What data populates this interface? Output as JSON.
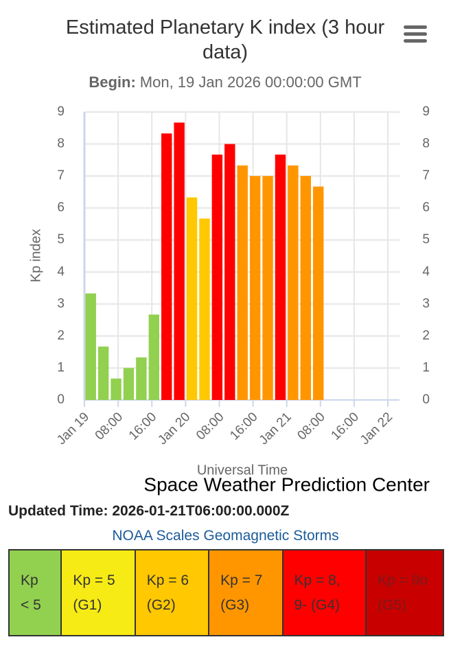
{
  "chart_data": {
    "type": "bar",
    "title": "Estimated Planetary K index (3 hour data)",
    "subtitle_label": "Begin:",
    "subtitle": "Mon, 19 Jan 2026 00:00:00 GMT",
    "x_label": "Universal Time",
    "y_label": "Kp index",
    "credit": "Space Weather Prediction Center",
    "x": [
      "Jan 19 00:00",
      "Jan 19 03:00",
      "Jan 19 06:00",
      "Jan 19 09:00",
      "Jan 19 12:00",
      "Jan 19 15:00",
      "Jan 19 18:00",
      "Jan 19 21:00",
      "Jan 20 00:00",
      "Jan 20 03:00",
      "Jan 20 06:00",
      "Jan 20 09:00",
      "Jan 20 12:00",
      "Jan 20 15:00",
      "Jan 20 18:00",
      "Jan 20 21:00",
      "Jan 21 00:00",
      "Jan 21 03:00",
      "Jan 21 06:00"
    ],
    "values": [
      3.33,
      1.67,
      0.67,
      1,
      1.33,
      2.67,
      8.33,
      8.67,
      6.33,
      5.67,
      7.67,
      8,
      7.33,
      7,
      7,
      7.67,
      7.33,
      7,
      6.67
    ],
    "colors": [
      "#92d050",
      "#92d050",
      "#92d050",
      "#92d050",
      "#92d050",
      "#92d050",
      "#ff0000",
      "#ff0000",
      "#ffc800",
      "#ffc800",
      "#ff0000",
      "#ff0000",
      "#ff9600",
      "#ff9600",
      "#ff9600",
      "#ff0000",
      "#ff9600",
      "#ff9600",
      "#ff9600"
    ],
    "xlim": [
      "Jan 19 00:00",
      "Jan 22 00:00"
    ],
    "xticks": [
      {
        "value": "Jan 19 00:00",
        "label": "Jan 19"
      },
      {
        "value": "Jan 19 08:00",
        "label": "08:00"
      },
      {
        "value": "Jan 19 16:00",
        "label": "16:00"
      },
      {
        "value": "Jan 20 00:00",
        "label": "Jan 20"
      },
      {
        "value": "Jan 20 08:00",
        "label": "08:00"
      },
      {
        "value": "Jan 20 16:00",
        "label": "16:00"
      },
      {
        "value": "Jan 21 00:00",
        "label": "Jan 21"
      },
      {
        "value": "Jan 21 08:00",
        "label": "08:00"
      },
      {
        "value": "Jan 21 16:00",
        "label": "16:00"
      },
      {
        "value": "Jan 22 00:00",
        "label": "Jan 22"
      }
    ],
    "ylim": [
      0,
      9
    ],
    "yticks": [
      0,
      1,
      2,
      3,
      4,
      5,
      6,
      7,
      8,
      9
    ],
    "y2lim": [
      0,
      9
    ],
    "y2ticks": [
      0,
      1,
      2,
      3,
      4,
      5,
      6,
      7,
      8,
      9
    ],
    "grid": true
  },
  "updated_label": "Updated Time:",
  "updated": "2026-01-21T06:00:00.000Z",
  "scales": {
    "title": "NOAA Scales Geomagnetic Storms",
    "cells": [
      {
        "label": "Kp < 5",
        "color": "#92d050"
      },
      {
        "label": "Kp = 5 (G1)",
        "color": "#f6eb14"
      },
      {
        "label": "Kp = 6 (G2)",
        "color": "#ffc800"
      },
      {
        "label": "Kp = 7 (G3)",
        "color": "#ff9600"
      },
      {
        "label": "Kp = 8, 9- (G4)",
        "color": "#ff0000"
      },
      {
        "label": "Kp = 9o (G5)",
        "color": "#c80000"
      }
    ]
  }
}
